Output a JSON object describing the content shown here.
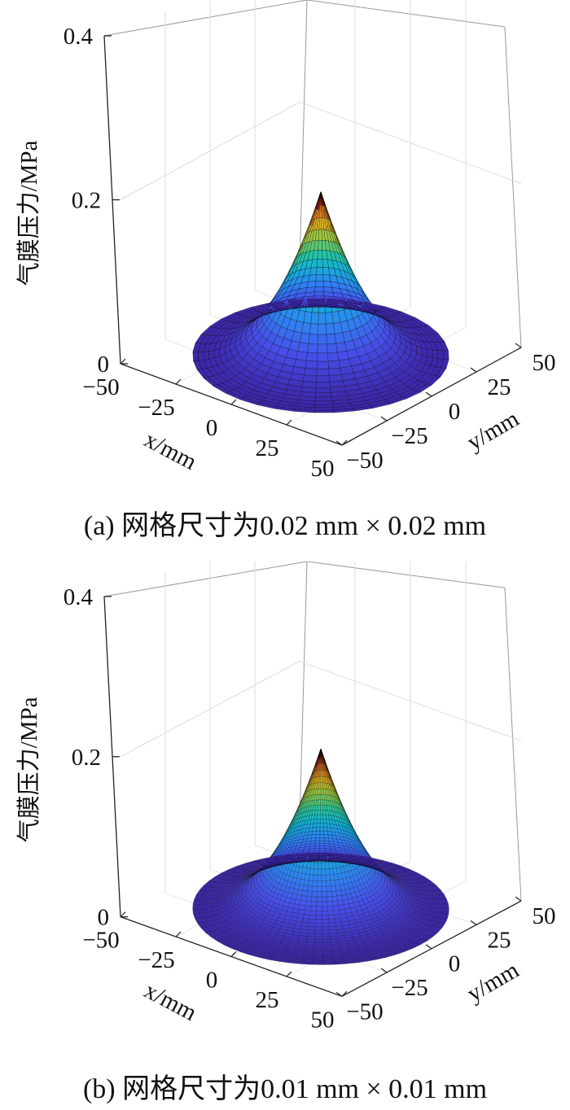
{
  "chart_data": [
    {
      "type": "surface3d",
      "caption": "(a)  网格尺寸为0.02 mm × 0.02 mm",
      "zlabel": "气膜压力/MPa",
      "xlabel": "x/mm",
      "ylabel": "y/mm",
      "z_ticks": [
        "0",
        "0.2",
        "0.4"
      ],
      "x_ticks": [
        "−50",
        "−25",
        "0",
        "25",
        "50"
      ],
      "y_ticks": [
        "−50",
        "−25",
        "0",
        "25",
        "50"
      ],
      "zlim": [
        0,
        0.4
      ],
      "xlim": [
        -50,
        50
      ],
      "ylim": [
        -50,
        50
      ],
      "surface": {
        "shape": "axisymmetric cone",
        "radius_mm": 45,
        "peak_pressure_MPa": 0.2,
        "mesh": "coarse",
        "colormap": "parula"
      },
      "grid": true
    },
    {
      "type": "surface3d",
      "caption": "(b)  网格尺寸为0.01 mm × 0.01 mm",
      "zlabel": "气膜压力/MPa",
      "xlabel": "x/mm",
      "ylabel": "y/mm",
      "z_ticks": [
        "0",
        "0.2",
        "0.4"
      ],
      "x_ticks": [
        "−50",
        "−25",
        "0",
        "25",
        "50"
      ],
      "y_ticks": [
        "−50",
        "−25",
        "0",
        "25",
        "50"
      ],
      "zlim": [
        0,
        0.4
      ],
      "xlim": [
        -50,
        50
      ],
      "ylim": [
        -50,
        50
      ],
      "surface": {
        "shape": "axisymmetric cone",
        "radius_mm": 45,
        "peak_pressure_MPa": 0.2,
        "mesh": "fine",
        "colormap": "parula"
      },
      "grid": true
    }
  ]
}
